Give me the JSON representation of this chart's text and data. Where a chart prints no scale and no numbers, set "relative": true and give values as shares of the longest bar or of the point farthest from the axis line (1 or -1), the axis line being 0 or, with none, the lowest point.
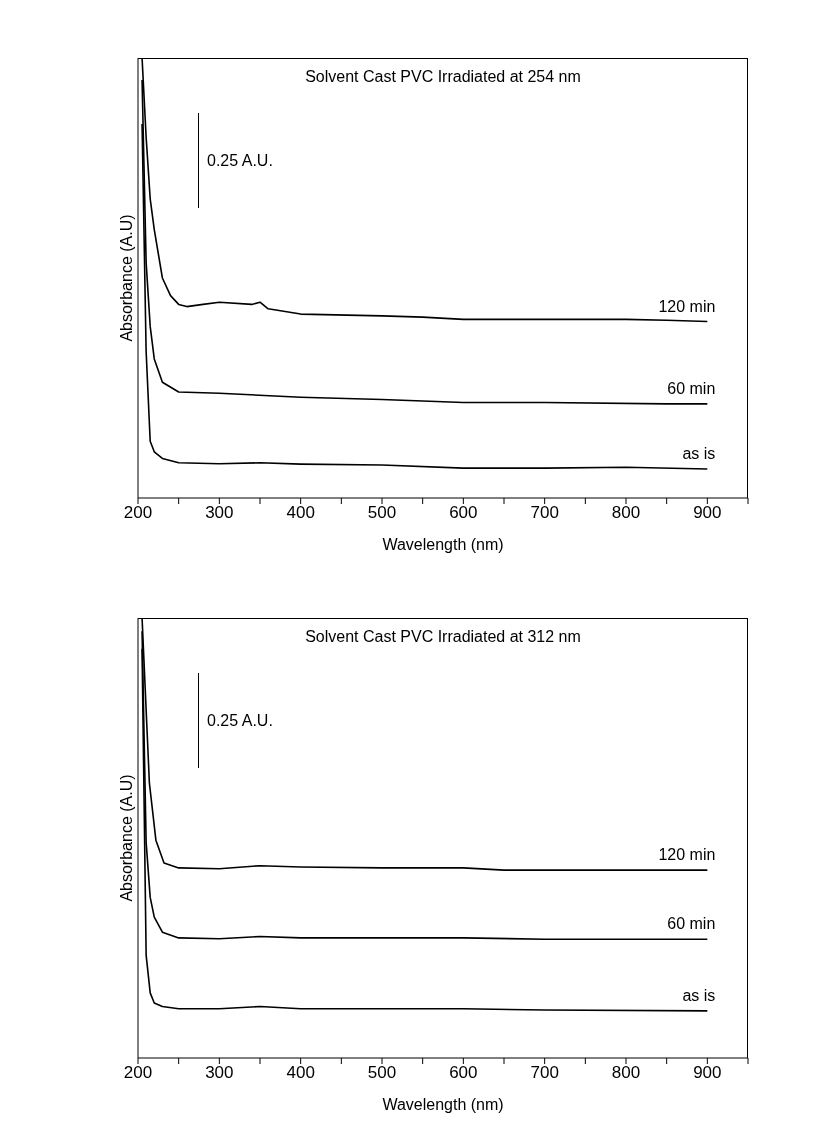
{
  "chart_data": [
    {
      "type": "line",
      "title": "Solvent Cast PVC Irradiated at 254 nm",
      "xlabel": "Wavelength (nm)",
      "ylabel": "Absorbance (A.U)",
      "relative": true,
      "legend": false,
      "grid": false,
      "xlim": [
        200,
        950
      ],
      "xticks": [
        200,
        {
          "value": 250,
          "label": null
        },
        300,
        {
          "value": 350,
          "label": null
        },
        400,
        {
          "value": 450,
          "label": null
        },
        500,
        {
          "value": 550,
          "label": null
        },
        600,
        {
          "value": 650,
          "label": null
        },
        700,
        {
          "value": 750,
          "label": null
        },
        800,
        {
          "value": 850,
          "label": null
        },
        900,
        {
          "value": 950,
          "label": null
        }
      ],
      "annotations": [
        "0.25 A.U."
      ],
      "series": [
        {
          "name": "120 min",
          "color": "#000000",
          "x": [
            205,
            210,
            215,
            220,
            230,
            240,
            250,
            260,
            280,
            300,
            340,
            350,
            360,
            400,
            500,
            550,
            600,
            700,
            800,
            850,
            900
          ],
          "values": [
            1.0,
            0.82,
            0.68,
            0.61,
            0.5,
            0.46,
            0.44,
            0.435,
            0.44,
            0.445,
            0.44,
            0.445,
            0.43,
            0.418,
            0.414,
            0.411,
            0.406,
            0.406,
            0.406,
            0.404,
            0.401
          ]
        },
        {
          "name": "60 min",
          "color": "#000000",
          "x": [
            205,
            210,
            215,
            220,
            230,
            250,
            300,
            400,
            500,
            600,
            700,
            850,
            900
          ],
          "values": [
            0.95,
            0.535,
            0.39,
            0.316,
            0.263,
            0.241,
            0.238,
            0.229,
            0.224,
            0.217,
            0.217,
            0.214,
            0.214
          ]
        },
        {
          "name": "as is",
          "color": "#000000",
          "x": [
            205,
            210,
            215,
            220,
            230,
            250,
            300,
            350,
            400,
            500,
            600,
            700,
            800,
            900
          ],
          "values": [
            0.85,
            0.333,
            0.129,
            0.105,
            0.09,
            0.08,
            0.078,
            0.08,
            0.077,
            0.075,
            0.068,
            0.068,
            0.07,
            0.066
          ]
        }
      ]
    },
    {
      "type": "line",
      "title": "Solvent Cast PVC Irradiated at 312 nm",
      "xlabel": "Wavelength (nm)",
      "ylabel": "Absorbance (A.U)",
      "relative": true,
      "legend": false,
      "grid": false,
      "xlim": [
        200,
        950
      ],
      "xticks": [
        200,
        {
          "value": 250,
          "label": null
        },
        300,
        {
          "value": 350,
          "label": null
        },
        400,
        {
          "value": 450,
          "label": null
        },
        500,
        {
          "value": 550,
          "label": null
        },
        600,
        {
          "value": 650,
          "label": null
        },
        700,
        {
          "value": 750,
          "label": null
        },
        800,
        {
          "value": 850,
          "label": null
        },
        900,
        {
          "value": 950,
          "label": null
        }
      ],
      "annotations": [
        "0.25 A.U."
      ],
      "series": [
        {
          "name": "120 min",
          "color": "#000000",
          "x": [
            205,
            214,
            222,
            232,
            250,
            300,
            350,
            400,
            500,
            600,
            650,
            700,
            800,
            900
          ],
          "values": [
            1.0,
            0.625,
            0.495,
            0.443,
            0.432,
            0.43,
            0.437,
            0.434,
            0.432,
            0.432,
            0.427,
            0.427,
            0.427,
            0.427
          ]
        },
        {
          "name": "60 min",
          "color": "#000000",
          "x": [
            205,
            210,
            215,
            220,
            230,
            250,
            300,
            350,
            400,
            600,
            700,
            900
          ],
          "values": [
            0.97,
            0.49,
            0.365,
            0.32,
            0.286,
            0.273,
            0.271,
            0.276,
            0.273,
            0.273,
            0.27,
            0.27
          ]
        },
        {
          "name": "as is",
          "color": "#000000",
          "x": [
            205,
            210,
            215,
            220,
            230,
            250,
            300,
            350,
            400,
            600,
            700,
            900
          ],
          "values": [
            0.93,
            0.234,
            0.148,
            0.125,
            0.117,
            0.112,
            0.112,
            0.117,
            0.112,
            0.112,
            0.109,
            0.107
          ]
        }
      ]
    }
  ]
}
